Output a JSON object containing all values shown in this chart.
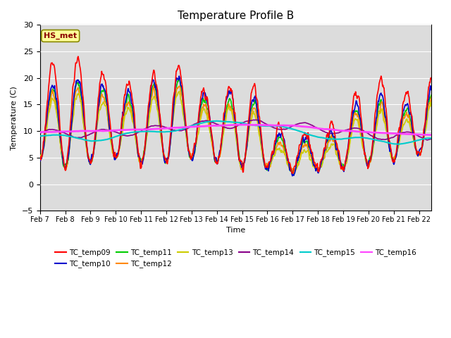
{
  "title": "Temperature Profile B",
  "xlabel": "Time",
  "ylabel": "Temperature (C)",
  "ylim": [
    -5,
    30
  ],
  "annotation_text": "HS_met",
  "annotation_color": "#8B0000",
  "annotation_bg": "#FFFF99",
  "bg_color": "#DCDCDC",
  "series_order": [
    "TC_temp09",
    "TC_temp10",
    "TC_temp11",
    "TC_temp12",
    "TC_temp13",
    "TC_temp14",
    "TC_temp15",
    "TC_temp16"
  ],
  "series": {
    "TC_temp09": {
      "color": "#FF0000",
      "lw": 1.2,
      "zorder": 5
    },
    "TC_temp10": {
      "color": "#0000CC",
      "lw": 1.2,
      "zorder": 4
    },
    "TC_temp11": {
      "color": "#00CC00",
      "lw": 1.2,
      "zorder": 3
    },
    "TC_temp12": {
      "color": "#FF8800",
      "lw": 1.2,
      "zorder": 3
    },
    "TC_temp13": {
      "color": "#CCCC00",
      "lw": 1.2,
      "zorder": 3
    },
    "TC_temp14": {
      "color": "#880088",
      "lw": 1.2,
      "zorder": 3
    },
    "TC_temp15": {
      "color": "#00CCCC",
      "lw": 1.5,
      "zorder": 6
    },
    "TC_temp16": {
      "color": "#FF44FF",
      "lw": 2.0,
      "zorder": 7
    }
  },
  "yticks": [
    -5,
    0,
    5,
    10,
    15,
    20,
    25,
    30
  ],
  "xtick_labels": [
    "Feb 7",
    "Feb 8",
    "Feb 9",
    "Feb 10",
    "Feb 11",
    "Feb 12",
    "Feb 13",
    "Feb 14",
    "Feb 15",
    "Feb 16",
    "Feb 17",
    "Feb 18",
    "Feb 19",
    "Feb 20",
    "Feb 21",
    "Feb 22"
  ],
  "legend_entries": [
    {
      "label": "TC_temp09",
      "color": "#FF0000"
    },
    {
      "label": "TC_temp10",
      "color": "#0000CC"
    },
    {
      "label": "TC_temp11",
      "color": "#00CC00"
    },
    {
      "label": "TC_temp12",
      "color": "#FF8800"
    },
    {
      "label": "TC_temp13",
      "color": "#CCCC00"
    },
    {
      "label": "TC_temp14",
      "color": "#880088"
    },
    {
      "label": "TC_temp15",
      "color": "#00CCCC"
    },
    {
      "label": "TC_temp16",
      "color": "#FF44FF"
    }
  ]
}
